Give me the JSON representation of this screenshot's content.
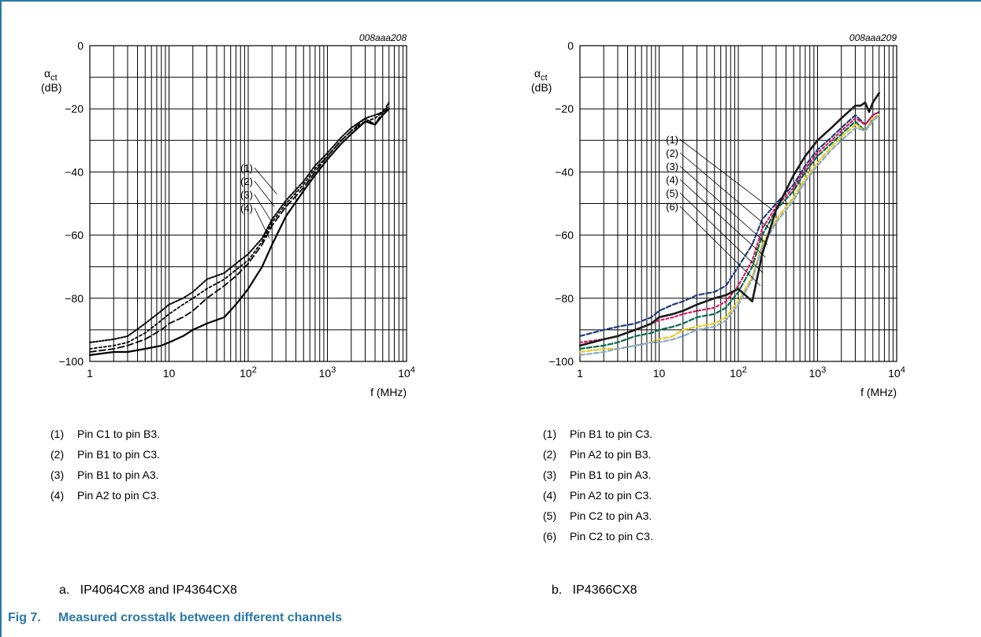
{
  "chart_data": [
    {
      "type": "line",
      "code": "008aaa208",
      "ylabel_symbol": "α",
      "ylabel_sub": "ct",
      "ylabel_unit": "(dB)",
      "xlabel": "f (MHz)",
      "xscale": "log",
      "xlim": [
        1,
        10000
      ],
      "ylim": [
        -100,
        0
      ],
      "yticks": [
        0,
        -20,
        -40,
        -60,
        -80,
        -100
      ],
      "xticks": [
        {
          "value": 1,
          "base": "1",
          "exp": ""
        },
        {
          "value": 10,
          "base": "10",
          "exp": ""
        },
        {
          "value": 100,
          "base": "10",
          "exp": "2"
        },
        {
          "value": 1000,
          "base": "10",
          "exp": "3"
        },
        {
          "value": 10000,
          "base": "10",
          "exp": "4"
        }
      ],
      "grid": true,
      "series": [
        {
          "name": "(1)",
          "color": "#000000",
          "dash": "2,2",
          "width": 2,
          "x": [
            1,
            2,
            3,
            5,
            8,
            10,
            15,
            20,
            30,
            50,
            70,
            100,
            150,
            200,
            300,
            500,
            700,
            1000,
            1500,
            2000,
            3000,
            4000,
            5000,
            6000
          ],
          "y": [
            -94,
            -93,
            -92,
            -88,
            -84,
            -82,
            -80,
            -78,
            -74,
            -72,
            -69,
            -66,
            -61,
            -55,
            -49,
            -43,
            -38,
            -34,
            -29,
            -26,
            -23,
            -22,
            -21,
            -20
          ]
        },
        {
          "name": "(2)",
          "color": "#000000",
          "dash": "3,3",
          "width": 1.8,
          "x": [
            1,
            2,
            3,
            5,
            8,
            10,
            15,
            20,
            30,
            50,
            70,
            100,
            150,
            200,
            300,
            500,
            700,
            1000,
            1500,
            2000,
            3000,
            4000,
            5000,
            6000
          ],
          "y": [
            -96,
            -95,
            -94,
            -91,
            -87,
            -85,
            -82,
            -80,
            -77,
            -74,
            -71,
            -68,
            -62,
            -56,
            -50,
            -44,
            -39,
            -35,
            -30,
            -27,
            -24,
            -23,
            -21,
            -19
          ]
        },
        {
          "name": "(3)",
          "color": "#000000",
          "dash": "8,4",
          "width": 1.8,
          "x": [
            1,
            2,
            3,
            5,
            8,
            10,
            15,
            20,
            30,
            50,
            70,
            100,
            150,
            200,
            300,
            500,
            700,
            1000,
            1500,
            2000,
            3000,
            4000,
            5000,
            6000
          ],
          "y": [
            -97,
            -96,
            -95,
            -93,
            -90,
            -88,
            -86,
            -84,
            -80,
            -76,
            -73,
            -69,
            -63,
            -57,
            -51,
            -45,
            -40,
            -35,
            -30,
            -27,
            -23,
            -25,
            -21,
            -18
          ]
        },
        {
          "name": "(4)",
          "color": "#000000",
          "dash": "",
          "width": 2.2,
          "x": [
            1,
            2,
            3,
            5,
            8,
            10,
            15,
            20,
            30,
            50,
            70,
            100,
            150,
            200,
            300,
            500,
            700,
            1000,
            1500,
            2000,
            3000,
            4000,
            5000,
            6000
          ],
          "y": [
            -98,
            -97,
            -97,
            -96,
            -95,
            -94,
            -92,
            -90,
            -88,
            -86,
            -82,
            -77,
            -70,
            -63,
            -54,
            -46,
            -41,
            -36,
            -31,
            -28,
            -24,
            -25,
            -22,
            -20
          ]
        }
      ],
      "callouts": [
        "(1)",
        "(2)",
        "(3)",
        "(4)"
      ],
      "legend": [
        {
          "num": "(1)",
          "text": "Pin C1 to pin B3."
        },
        {
          "num": "(2)",
          "text": "Pin B1 to pin C3."
        },
        {
          "num": "(3)",
          "text": "Pin B1 to pin A3."
        },
        {
          "num": "(4)",
          "text": "Pin A2 to pin C3."
        }
      ],
      "subcaption": "a.   IP4064CX8 and IP4364CX8"
    },
    {
      "type": "line",
      "code": "008aaa209",
      "ylabel_symbol": "α",
      "ylabel_sub": "ct",
      "ylabel_unit": "(dB)",
      "xlabel": "f (MHz)",
      "xscale": "log",
      "xlim": [
        1,
        10000
      ],
      "ylim": [
        -100,
        0
      ],
      "yticks": [
        0,
        -20,
        -40,
        -60,
        -80,
        -100
      ],
      "xticks": [
        {
          "value": 1,
          "base": "1",
          "exp": ""
        },
        {
          "value": 10,
          "base": "10",
          "exp": ""
        },
        {
          "value": 100,
          "base": "10",
          "exp": "2"
        },
        {
          "value": 1000,
          "base": "10",
          "exp": "3"
        },
        {
          "value": 10000,
          "base": "10",
          "exp": "4"
        }
      ],
      "grid": true,
      "series": [
        {
          "name": "(1)",
          "color": "#1f3a7a",
          "dash": "6,3",
          "width": 2.2,
          "x": [
            1,
            2,
            3,
            5,
            8,
            10,
            15,
            20,
            30,
            50,
            70,
            100,
            150,
            200,
            300,
            500,
            700,
            1000,
            1500,
            2000,
            3000,
            4000,
            5000,
            6000
          ],
          "y": [
            -92,
            -90,
            -89,
            -88,
            -86,
            -84,
            -82,
            -81,
            -79,
            -78,
            -76,
            -70,
            -63,
            -55,
            -50,
            -44,
            -38,
            -33,
            -29,
            -26,
            -22,
            -25,
            -22,
            -21
          ]
        },
        {
          "name": "(2)",
          "color": "#d81b60",
          "dash": "3,3",
          "width": 2.2,
          "x": [
            1,
            2,
            3,
            5,
            8,
            10,
            15,
            20,
            30,
            50,
            70,
            100,
            150,
            200,
            300,
            500,
            700,
            1000,
            1500,
            2000,
            3000,
            4000,
            5000,
            6000
          ],
          "y": [
            -94,
            -93,
            -92,
            -90,
            -88,
            -87,
            -86,
            -85,
            -84,
            -83,
            -81,
            -76,
            -68,
            -58,
            -51,
            -45,
            -39,
            -34,
            -30,
            -27,
            -23,
            -25,
            -22,
            -21
          ]
        },
        {
          "name": "(3)",
          "color": "#006b4d",
          "dash": "6,3",
          "width": 2.2,
          "x": [
            1,
            2,
            3,
            5,
            8,
            10,
            15,
            20,
            30,
            50,
            70,
            100,
            150,
            200,
            300,
            500,
            700,
            1000,
            1500,
            2000,
            3000,
            4000,
            5000,
            6000
          ],
          "y": [
            -96,
            -95,
            -94,
            -92,
            -91,
            -90,
            -89,
            -88,
            -86,
            -85,
            -83,
            -78,
            -70,
            -60,
            -52,
            -46,
            -40,
            -35,
            -31,
            -28,
            -24,
            -27,
            -23,
            -22
          ]
        },
        {
          "name": "(4)",
          "color": "#e6c81e",
          "dash": "6,3",
          "width": 2.2,
          "x": [
            1,
            2,
            3,
            5,
            8,
            10,
            15,
            20,
            30,
            50,
            70,
            100,
            150,
            200,
            300,
            500,
            700,
            1000,
            1500,
            2000,
            3000,
            4000,
            5000,
            6000
          ],
          "y": [
            -97,
            -96,
            -96,
            -95,
            -94,
            -93,
            -92,
            -90,
            -89,
            -88,
            -86,
            -81,
            -73,
            -63,
            -55,
            -48,
            -42,
            -37,
            -32,
            -29,
            -25,
            -27,
            -23,
            -22
          ]
        },
        {
          "name": "(5)",
          "color": "#8aa9cc",
          "dash": "6,3",
          "width": 2.2,
          "x": [
            1,
            2,
            3,
            5,
            8,
            10,
            15,
            20,
            30,
            50,
            70,
            100,
            150,
            200,
            300,
            500,
            700,
            1000,
            1500,
            2000,
            3000,
            4000,
            5000,
            6000
          ],
          "y": [
            -98,
            -97,
            -96,
            -95,
            -94,
            -94,
            -93,
            -92,
            -90,
            -89,
            -87,
            -82,
            -74,
            -64,
            -56,
            -49,
            -43,
            -38,
            -33,
            -30,
            -26,
            -27,
            -24,
            -22
          ]
        },
        {
          "name": "(6)",
          "color": "#1a1a1a",
          "dash": "",
          "width": 2.6,
          "x": [
            1,
            2,
            3,
            5,
            8,
            10,
            15,
            20,
            30,
            50,
            70,
            100,
            150,
            200,
            300,
            500,
            700,
            1000,
            1500,
            2000,
            3000,
            3500,
            4000,
            4500,
            5000,
            6000
          ],
          "y": [
            -95,
            -93,
            -92,
            -90,
            -88,
            -86,
            -85,
            -84,
            -82,
            -80,
            -79,
            -77,
            -81,
            -66,
            -52,
            -41,
            -35,
            -30,
            -26,
            -23,
            -19,
            -19,
            -18,
            -21,
            -18,
            -15
          ]
        }
      ],
      "callouts": [
        "(1)",
        "(2)",
        "(3)",
        "(4)",
        "(5)",
        "(6)"
      ],
      "legend": [
        {
          "num": "(1)",
          "text": "Pin B1 to pin C3."
        },
        {
          "num": "(2)",
          "text": "Pin A2 to pin B3."
        },
        {
          "num": "(3)",
          "text": "Pin B1 to pin A3."
        },
        {
          "num": "(4)",
          "text": "Pin A2 to pin C3."
        },
        {
          "num": "(5)",
          "text": "Pin C2 to pin A3."
        },
        {
          "num": "(6)",
          "text": "Pin C2 to pin C3."
        }
      ],
      "subcaption": "b.   IP4366CX8"
    }
  ],
  "figure": {
    "label": "Fig 7.",
    "title": "Measured crosstalk between different channels"
  }
}
